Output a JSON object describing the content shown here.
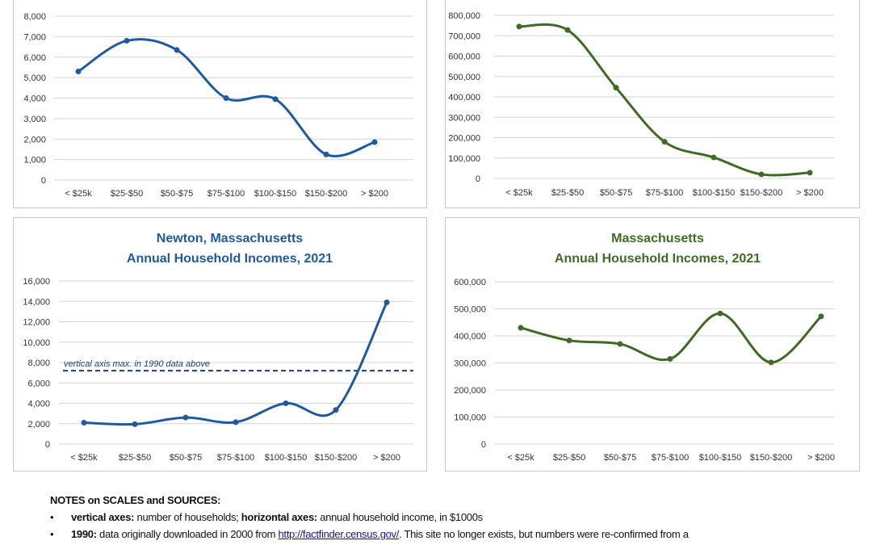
{
  "chart_data": [
    {
      "type": "line",
      "title": [],
      "categories": [
        "< $25k",
        "$25-$50",
        "$50-$75",
        "$75-$100",
        "$100-$150",
        "$150-$200",
        "> $200"
      ],
      "values": [
        5300,
        6800,
        6350,
        4000,
        3950,
        1250,
        1850
      ],
      "ylim": [
        0,
        8000
      ],
      "yticks": [
        "0",
        "1,000",
        "2,000",
        "3,000",
        "4,000",
        "5,000",
        "6,000",
        "7,000",
        "8,000"
      ],
      "color": "#1f5aa0",
      "grid": true,
      "smooth": true
    },
    {
      "type": "line",
      "title": [],
      "categories": [
        "< $25k",
        "$25-$50",
        "$50-$75",
        "$75-$100",
        "$100-$150",
        "$150-$200",
        "> $200"
      ],
      "values": [
        745000,
        728000,
        445000,
        180000,
        103000,
        20000,
        28000
      ],
      "ylim": [
        0,
        800000
      ],
      "yticks": [
        "0",
        "100,000",
        "200,000",
        "300,000",
        "400,000",
        "500,000",
        "600,000",
        "700,000",
        "800,000"
      ],
      "color": "#3e6b26",
      "grid": true,
      "smooth": true
    },
    {
      "type": "line",
      "title": [
        "Newton, Massachusetts",
        "Annual Household Incomes, 2021"
      ],
      "categories": [
        "< $25k",
        "$25-$50",
        "$50-$75",
        "$75-$100",
        "$100-$150",
        "$150-$200",
        "> $200"
      ],
      "values": [
        2100,
        1950,
        2600,
        2150,
        4000,
        3350,
        13900
      ],
      "ylim": [
        0,
        16000
      ],
      "yticks": [
        "0",
        "2,000",
        "4,000",
        "6,000",
        "8,000",
        "10,000",
        "12,000",
        "14,000",
        "16,000"
      ],
      "color": "#1f5aa0",
      "grid": true,
      "smooth": true,
      "reference_line": {
        "value": 7200,
        "label": "vertical axis max. in 1990 data above",
        "style": "dashed",
        "color": "#1f3c6e"
      }
    },
    {
      "type": "line",
      "title": [
        "Massachusetts",
        "Annual Household Incomes, 2021"
      ],
      "categories": [
        "< $25k",
        "$25-$50",
        "$50-$75",
        "$75-$100",
        "$100-$150",
        "$150-$200",
        "> $200"
      ],
      "values": [
        430000,
        383000,
        370000,
        315000,
        483000,
        302000,
        472000
      ],
      "ylim": [
        0,
        600000
      ],
      "yticks": [
        "0",
        "100,000",
        "200,000",
        "300,000",
        "400,000",
        "500,000",
        "600,000"
      ],
      "color": "#3e6b26",
      "grid": true,
      "smooth": true
    }
  ],
  "notes": {
    "heading": "NOTES on SCALES and SOURCES:",
    "items": [
      {
        "b1": "vertical axes:",
        "t1": " number of households; ",
        "b2": "horizontal axes:",
        "t2": " annual household income, in $1000s"
      },
      {
        "b1": "1990:",
        "t1": " data originally downloaded in 2000 from ",
        "link": "http://factfinder.census.gov/",
        "t2": ". This site no longer exists, but numbers were re-confirmed from a"
      }
    ]
  }
}
